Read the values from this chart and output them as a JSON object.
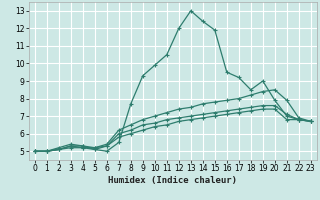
{
  "xlabel": "Humidex (Indice chaleur)",
  "bg_color": "#cde8e5",
  "line_color": "#2e7d6e",
  "grid_color": "#ffffff",
  "xlim": [
    -0.5,
    23.5
  ],
  "ylim": [
    4.5,
    13.5
  ],
  "xticks": [
    0,
    1,
    2,
    3,
    4,
    5,
    6,
    7,
    8,
    9,
    10,
    11,
    12,
    13,
    14,
    15,
    16,
    17,
    18,
    19,
    20,
    21,
    22,
    23
  ],
  "yticks": [
    5,
    6,
    7,
    8,
    9,
    10,
    11,
    12,
    13
  ],
  "lines": [
    {
      "x": [
        0,
        1,
        2,
        3,
        4,
        5,
        6,
        7,
        8,
        9,
        10,
        11,
        12,
        13,
        14,
        15,
        16,
        17,
        18,
        19,
        20,
        21,
        22,
        23
      ],
      "y": [
        5,
        5,
        5.2,
        5.4,
        5.3,
        5.1,
        5.0,
        5.5,
        7.7,
        9.3,
        9.9,
        10.5,
        12.0,
        13.0,
        12.4,
        11.9,
        9.5,
        9.2,
        8.5,
        9.0,
        7.9,
        7.0,
        6.8,
        6.7
      ]
    },
    {
      "x": [
        0,
        1,
        2,
        3,
        4,
        5,
        6,
        7,
        8,
        9,
        10,
        11,
        12,
        13,
        14,
        15,
        16,
        17,
        18,
        19,
        20,
        21,
        22,
        23
      ],
      "y": [
        5,
        5,
        5.1,
        5.3,
        5.3,
        5.2,
        5.4,
        6.2,
        6.5,
        6.8,
        7.0,
        7.2,
        7.4,
        7.5,
        7.7,
        7.8,
        7.9,
        8.0,
        8.2,
        8.4,
        8.5,
        7.9,
        6.9,
        6.7
      ]
    },
    {
      "x": [
        0,
        1,
        2,
        3,
        4,
        5,
        6,
        7,
        8,
        9,
        10,
        11,
        12,
        13,
        14,
        15,
        16,
        17,
        18,
        19,
        20,
        21,
        22,
        23
      ],
      "y": [
        5,
        5,
        5.1,
        5.3,
        5.2,
        5.2,
        5.3,
        6.0,
        6.2,
        6.5,
        6.6,
        6.8,
        6.9,
        7.0,
        7.1,
        7.2,
        7.3,
        7.4,
        7.5,
        7.6,
        7.6,
        7.1,
        6.8,
        6.7
      ]
    },
    {
      "x": [
        0,
        1,
        2,
        3,
        4,
        5,
        6,
        7,
        8,
        9,
        10,
        11,
        12,
        13,
        14,
        15,
        16,
        17,
        18,
        19,
        20,
        21,
        22,
        23
      ],
      "y": [
        5,
        5,
        5.1,
        5.2,
        5.2,
        5.1,
        5.3,
        5.8,
        6.0,
        6.2,
        6.4,
        6.5,
        6.7,
        6.8,
        6.9,
        7.0,
        7.1,
        7.2,
        7.3,
        7.4,
        7.4,
        6.8,
        6.8,
        6.7
      ]
    }
  ]
}
